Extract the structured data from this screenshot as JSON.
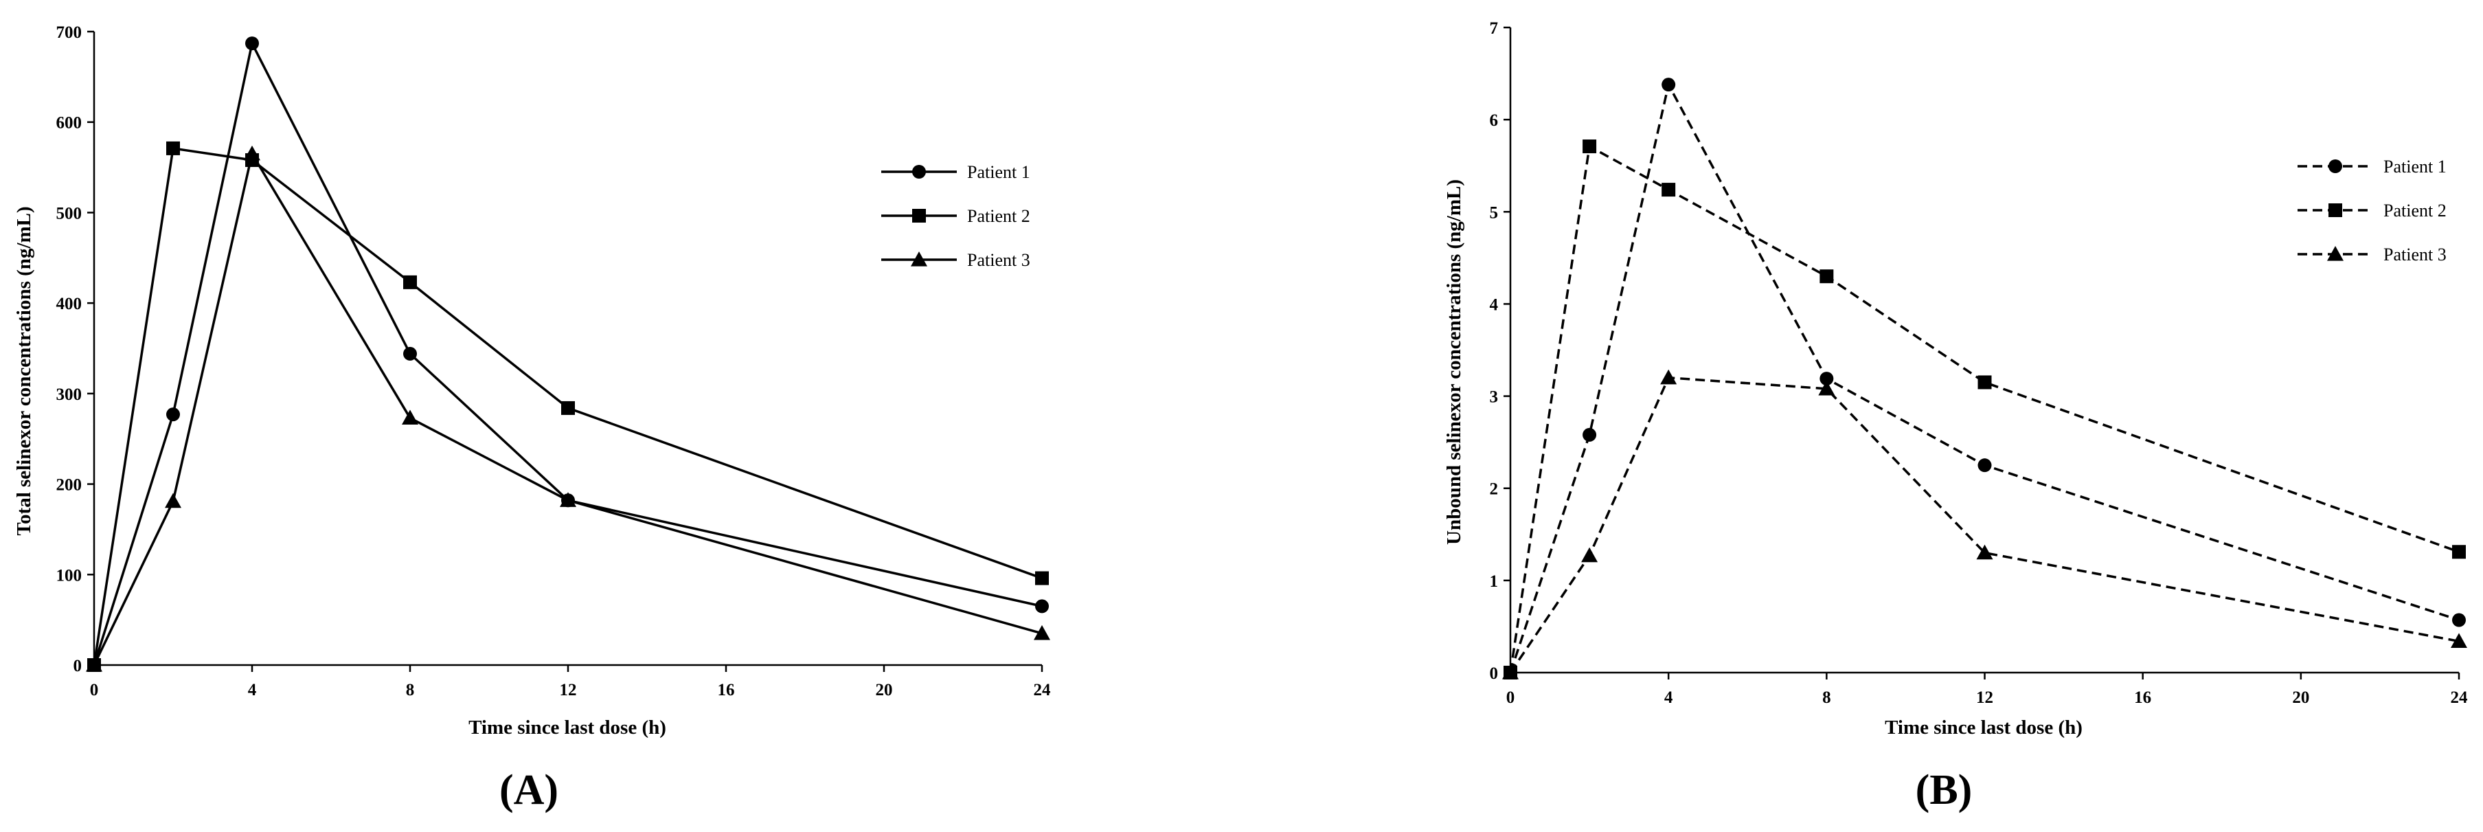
{
  "chart_data": [
    {
      "type": "line",
      "panel_label": "(A)",
      "xlabel": "Time since last dose (h)",
      "ylabel": "Total selinexor concentrations (ng/mL)",
      "xlim": [
        0,
        24
      ],
      "ylim": [
        0,
        700
      ],
      "xticks": [
        0,
        4,
        8,
        12,
        16,
        20,
        24
      ],
      "yticks": [
        0,
        100,
        200,
        300,
        400,
        500,
        600,
        700
      ],
      "line_style": "solid",
      "legend_position": "right",
      "series": [
        {
          "name": "Patient 1",
          "marker": "circle",
          "x": [
            0,
            2,
            4,
            8,
            12,
            24
          ],
          "y": [
            0,
            277,
            687,
            344,
            182,
            65
          ]
        },
        {
          "name": "Patient 2",
          "marker": "square",
          "x": [
            0,
            2,
            4,
            8,
            12,
            24
          ],
          "y": [
            0,
            571,
            558,
            423,
            284,
            96
          ]
        },
        {
          "name": "Patient 3",
          "marker": "triangle",
          "x": [
            0,
            2,
            4,
            8,
            12,
            24
          ],
          "y": [
            0,
            181,
            565,
            273,
            182,
            35
          ]
        }
      ]
    },
    {
      "type": "line",
      "panel_label": "(B)",
      "xlabel": "Time since last dose (h)",
      "ylabel": "Unbound selinexor concentrations (ng/mL)",
      "xlim": [
        0,
        24
      ],
      "ylim": [
        0,
        7
      ],
      "xticks": [
        0,
        4,
        8,
        12,
        16,
        20,
        24
      ],
      "yticks": [
        0,
        1,
        2,
        3,
        4,
        5,
        6,
        7
      ],
      "line_style": "dashed",
      "legend_position": "right",
      "series": [
        {
          "name": "Patient 1",
          "marker": "circle",
          "x": [
            0,
            2,
            4,
            8,
            12,
            24
          ],
          "y": [
            0,
            2.58,
            6.38,
            3.19,
            2.25,
            0.57
          ]
        },
        {
          "name": "Patient 2",
          "marker": "square",
          "x": [
            0,
            2,
            4,
            8,
            12,
            24
          ],
          "y": [
            0,
            5.71,
            5.24,
            4.3,
            3.15,
            1.31
          ]
        },
        {
          "name": "Patient 3",
          "marker": "triangle",
          "x": [
            0,
            2,
            4,
            8,
            12,
            24
          ],
          "y": [
            0,
            1.27,
            3.2,
            3.08,
            1.3,
            0.34
          ]
        }
      ]
    }
  ]
}
